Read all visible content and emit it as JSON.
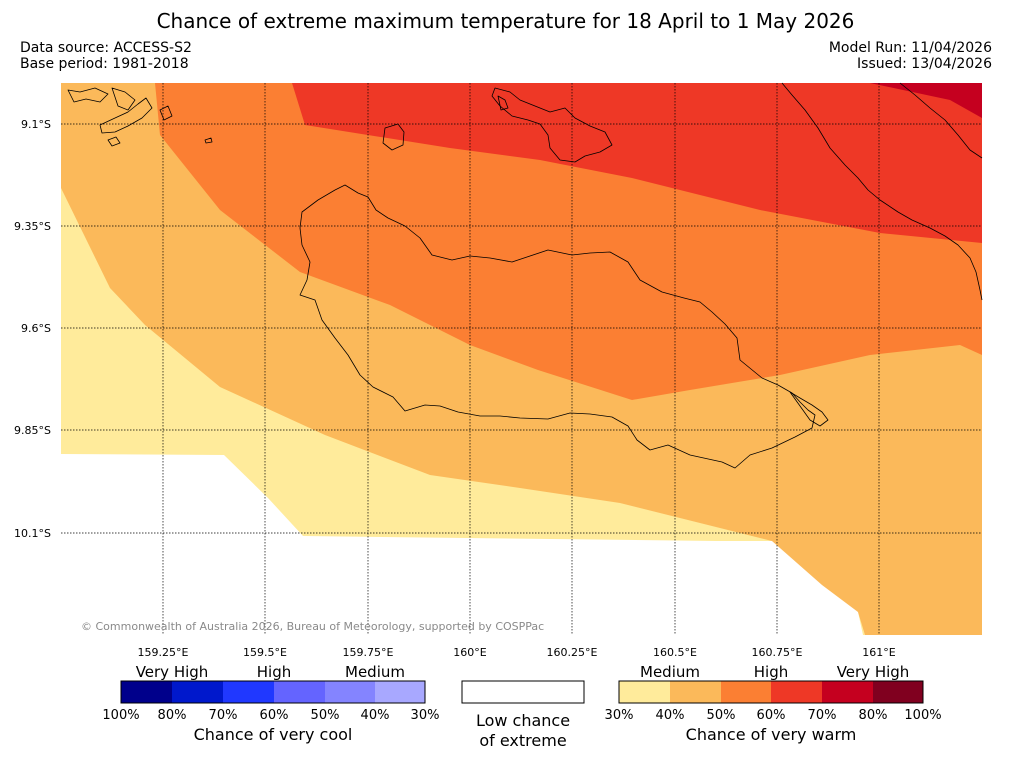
{
  "header": {
    "title": "Chance of extreme maximum temperature for 18 April to 1 May 2026",
    "data_source": "Data source: ACCESS-S2",
    "base_period": "Base period: 1981-2018",
    "model_run": "Model Run: 11/04/2026",
    "issued": "Issued: 13/04/2026"
  },
  "map": {
    "lat_labels": [
      "9.1°S",
      "9.35°S",
      "9.6°S",
      "9.85°S",
      "10.1°S"
    ],
    "lon_labels": [
      "159.25°E",
      "159.5°E",
      "159.75°E",
      "160°E",
      "160.25°E",
      "160.5°E",
      "160.75°E",
      "161°E"
    ],
    "copyright": "© Commonwealth of Australia 2026, Bureau of Meteorology, supported by COSPPac",
    "band_colors": {
      "warm_30_40": "#ffeb9b",
      "warm_40_50": "#fbb95a",
      "warm_50_60": "#fb7f33",
      "warm_60_70": "#ee3826",
      "warm_70_80": "#c5001f",
      "low": "#ffffff"
    }
  },
  "legend": {
    "cool": {
      "categories": [
        "Very High",
        "High",
        "Medium"
      ],
      "ticks": [
        "100%",
        "80%",
        "70%",
        "60%",
        "50%",
        "40%",
        "30%"
      ],
      "colors": [
        "#00008b",
        "#0018cc",
        "#2038ff",
        "#6464ff",
        "#8484ff",
        "#a8a8ff"
      ],
      "caption": "Chance of very cool"
    },
    "neutral": {
      "caption_line1": "Low chance",
      "caption_line2": "of extreme",
      "color": "#ffffff"
    },
    "warm": {
      "categories": [
        "Medium",
        "High",
        "Very High"
      ],
      "ticks": [
        "30%",
        "40%",
        "50%",
        "60%",
        "70%",
        "80%",
        "100%"
      ],
      "colors": [
        "#ffeb9b",
        "#fbb95a",
        "#fb7f33",
        "#ee3826",
        "#c5001f",
        "#80001f"
      ],
      "caption": "Chance of very warm"
    }
  }
}
